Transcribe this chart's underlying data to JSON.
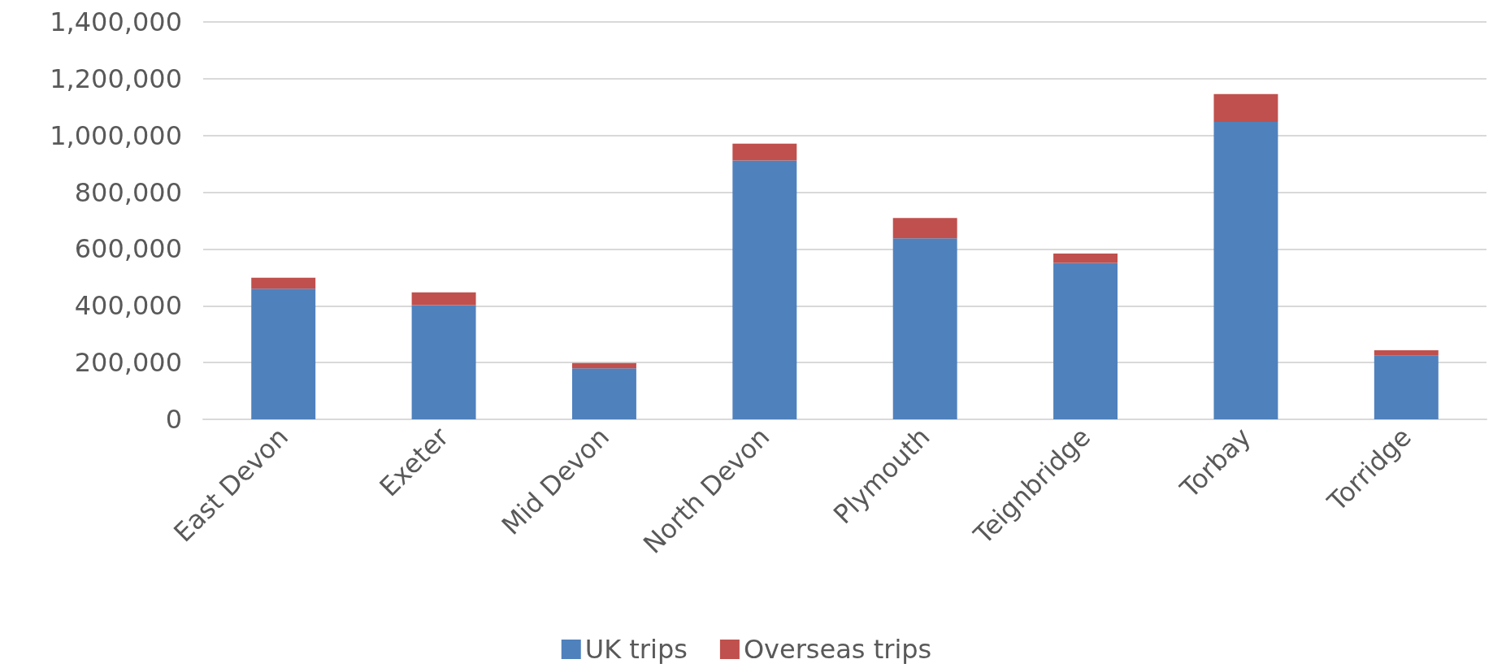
{
  "chart_data": {
    "type": "bar",
    "stacked": true,
    "categories": [
      "East Devon",
      "Exeter",
      "Mid Devon",
      "North Devon",
      "Plymouth",
      "Teignbridge",
      "Torbay",
      "Torridge"
    ],
    "series": [
      {
        "name": "UK trips",
        "color": "#4f81bd",
        "values": [
          460000,
          402000,
          180000,
          912000,
          638000,
          551000,
          1048000,
          224000
        ]
      },
      {
        "name": "Overseas trips",
        "color": "#c0504d",
        "values": [
          39000,
          45000,
          18000,
          59000,
          71000,
          33000,
          98000,
          19000
        ]
      }
    ],
    "ylim": [
      0,
      1400000
    ],
    "yticks": [
      0,
      {
        "value": 200000,
        "label": "200,000"
      },
      {
        "value": 400000,
        "label": "400,000"
      },
      {
        "value": 600000,
        "label": "600,000"
      },
      {
        "value": 800000,
        "label": "800,000"
      },
      {
        "value": 1000000,
        "label": "1,000,000"
      },
      {
        "value": 1200000,
        "label": "1,200,000"
      },
      {
        "value": 1400000,
        "label": "1,400,000"
      }
    ],
    "grid": "y",
    "legend": "bottom"
  }
}
